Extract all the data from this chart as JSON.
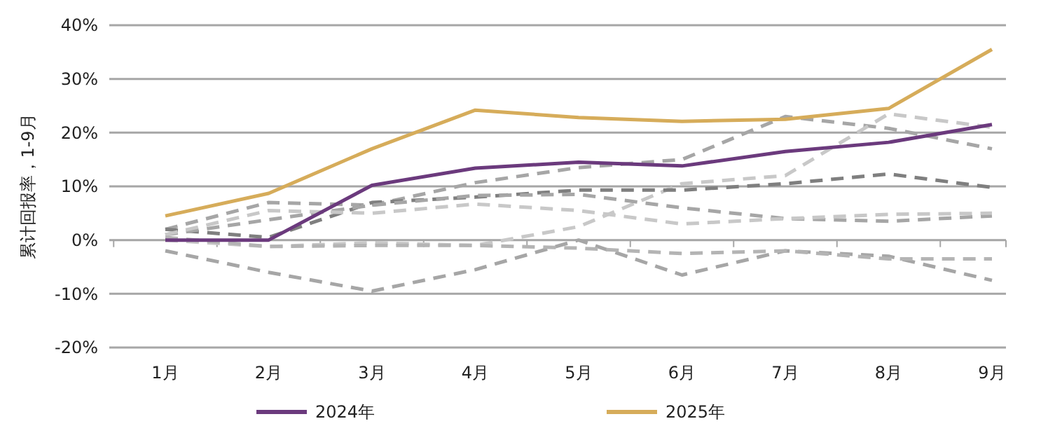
{
  "chart_data": {
    "type": "line",
    "ylabel": "累计回报率，1-9月",
    "categories": [
      "1月",
      "2月",
      "3月",
      "4月",
      "5月",
      "6月",
      "7月",
      "8月",
      "9月"
    ],
    "ylim": [
      -20,
      40
    ],
    "yticks": [
      {
        "value": -20,
        "label": "-20%"
      },
      {
        "value": -10,
        "label": "-10%"
      },
      {
        "value": 0,
        "label": "0%"
      },
      {
        "value": 10,
        "label": "10%"
      },
      {
        "value": 20,
        "label": "20%"
      },
      {
        "value": 30,
        "label": "30%"
      },
      {
        "value": 40,
        "label": "40%"
      }
    ],
    "grid": "y",
    "legend": "bottom",
    "line_style": "solid",
    "marker": "none",
    "series": [
      {
        "color": "#a6a6a6",
        "line_style": "dashed",
        "values": [
          2,
          7,
          6.5,
          10.7,
          13.5,
          15,
          23,
          20.8,
          17
        ]
      },
      {
        "color": "#c8c8c8",
        "line_style": "dashed",
        "values": [
          0,
          -1.2,
          -0.5,
          -1,
          2.5,
          10.5,
          12,
          23.5,
          21
        ]
      },
      {
        "color": "#7f7f7f",
        "line_style": "dashed",
        "values": [
          2,
          0.5,
          7,
          8,
          9.3,
          9.3,
          10.5,
          12.3,
          9.8
        ]
      },
      {
        "color": "#a6a6a6",
        "line_style": "dashed",
        "values": [
          1,
          3.8,
          6.5,
          8.3,
          8.5,
          6,
          4,
          3.5,
          4.5
        ]
      },
      {
        "color": "#c8c8c8",
        "line_style": "dashed",
        "values": [
          1,
          5.5,
          5,
          6.7,
          5.5,
          3,
          4,
          4.8,
          5
        ]
      },
      {
        "color": "#a6a6a6",
        "line_style": "dashed",
        "values": [
          -2,
          -6,
          -9.5,
          -5.5,
          0,
          -6.5,
          -2,
          -3,
          -7.5
        ]
      },
      {
        "color": "#b4b4b4",
        "line_style": "dashed",
        "values": [
          0.5,
          -1.2,
          -1,
          -1,
          -1.5,
          -2.5,
          -2,
          -3.5,
          -3.5
        ]
      },
      {
        "name": "2024年",
        "color": "#6b3a7d",
        "values": [
          0,
          0,
          10.2,
          13.4,
          14.5,
          13.8,
          16.5,
          18.2,
          21.5
        ]
      },
      {
        "name": "2025年",
        "color": "#d6ac5a",
        "values": [
          4.5,
          8.7,
          17,
          24.2,
          22.8,
          22.1,
          22.5,
          24.5,
          35.5
        ]
      }
    ]
  }
}
